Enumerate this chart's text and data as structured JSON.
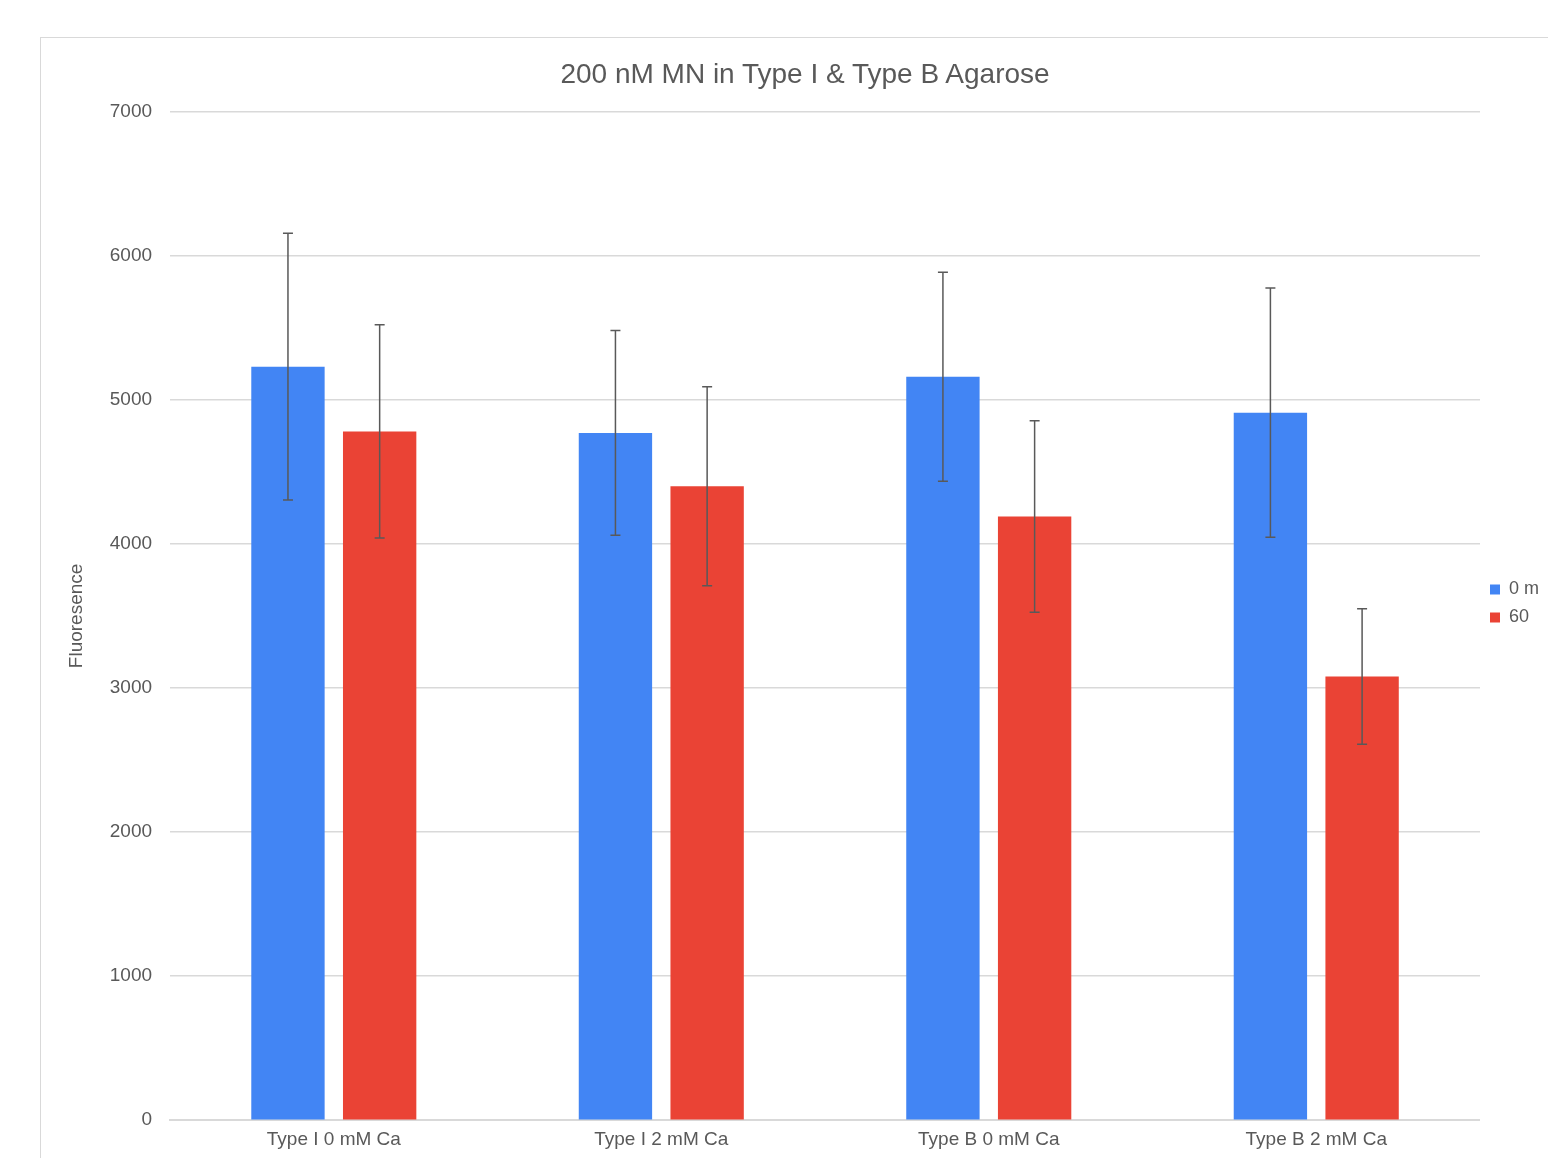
{
  "chart_data": {
    "type": "bar",
    "title": "200 nM MN in Type I & Type B Agarose",
    "ylabel": "Fluoresence",
    "categories": [
      "Type I 0 mM Ca",
      "Type I 2 mM Ca",
      "Type B 0 mM Ca",
      "Type B 2 mM Ca"
    ],
    "series": [
      {
        "name": "0 m",
        "color": "#4285f4",
        "values": [
          5230,
          4770,
          5160,
          4910
        ],
        "errors": [
          925,
          710,
          725,
          865
        ]
      },
      {
        "name": "60",
        "color": "#ea4335",
        "values": [
          4780,
          4400,
          4190,
          3080
        ],
        "errors": [
          740,
          690,
          665,
          470
        ]
      }
    ],
    "ylim": [
      0,
      7000
    ],
    "yticks": [
      0,
      1000,
      2000,
      3000,
      4000,
      5000,
      6000,
      7000
    ],
    "grid": "y",
    "legend": "right"
  }
}
